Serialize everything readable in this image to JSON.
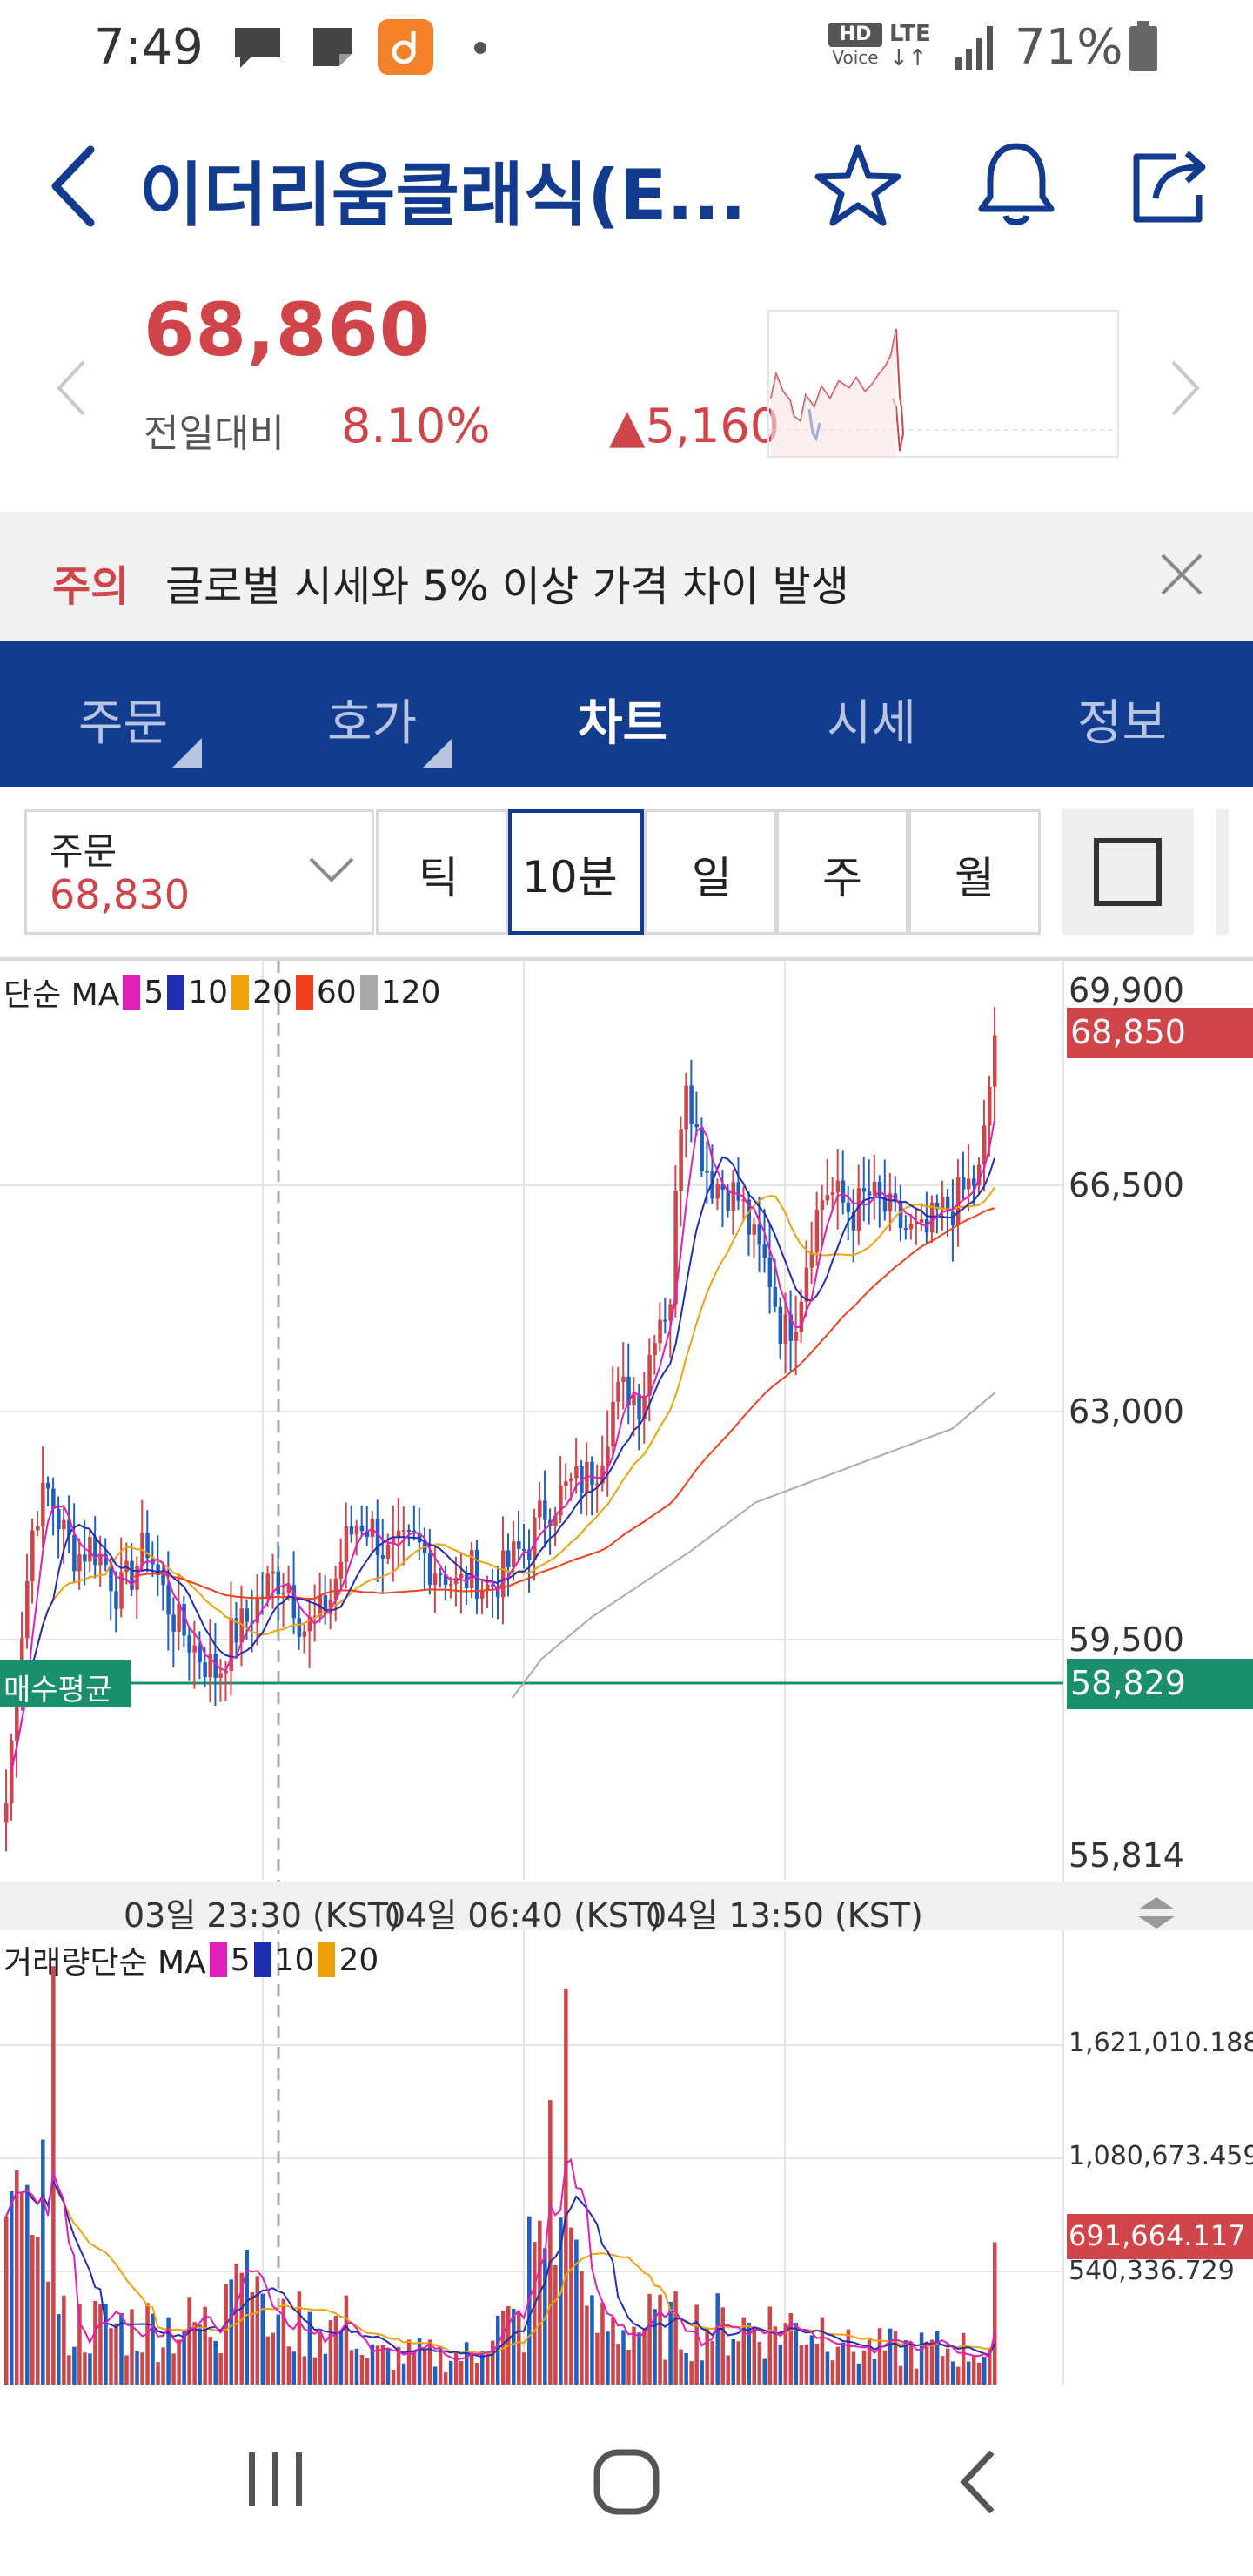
{
  "status_bar": {
    "time": "7:49",
    "icons": [
      "message-icon",
      "note-icon",
      "app-notification-icon",
      "dot-icon",
      "hd-voice-icon",
      "lte-icon",
      "signal-icon",
      "battery-icon"
    ],
    "hd_label": "HD",
    "voice_label": "Voice",
    "lte_label": "LTE",
    "battery": "71%"
  },
  "header": {
    "title": "이더리움클래식(E...",
    "icons": [
      "back-icon",
      "star-icon",
      "bell-icon",
      "share-icon"
    ]
  },
  "price": {
    "current": "68,860",
    "change_label": "전일대비",
    "change_pct": "8.10%",
    "change_value": "▲5,160",
    "colors": {
      "up": "#d0454a",
      "down": "#1f5fbf"
    }
  },
  "alert": {
    "tag": "주의",
    "message": "글로벌 시세와 5% 이상 가격 차이 발생"
  },
  "tabs": [
    {
      "label": "주문"
    },
    {
      "label": "호가"
    },
    {
      "label": "차트"
    },
    {
      "label": "시세"
    },
    {
      "label": "정보"
    }
  ],
  "controls": {
    "order_label": "주문",
    "order_value": "68,830",
    "intervals": [
      "틱",
      "10분",
      "일",
      "주",
      "월"
    ],
    "selected_interval": "10분"
  },
  "chart_data": [
    {
      "type": "candlestick",
      "legend_prefix": "단순 MA",
      "legend": [
        {
          "name": "5",
          "color": "#e11fb9"
        },
        {
          "name": "10",
          "color": "#1f2fb0"
        },
        {
          "name": "20",
          "color": "#f0a20a"
        },
        {
          "name": "60",
          "color": "#f0401e"
        },
        {
          "name": "120",
          "color": "#aaaaaa"
        }
      ],
      "y_ticks": [
        "69,900",
        "66,500",
        "63,000",
        "59,500",
        "55,814"
      ],
      "ylim": [
        55814,
        70000
      ],
      "last_price_label": "68,850",
      "avg_buy_label": "매수평균",
      "avg_buy_value": "58,829",
      "x_labels": [
        "03일 23:30 (KST)",
        "04일 06:40 (KST)",
        "04일 13:50 (KST)"
      ],
      "close_path": [
        57000,
        59500,
        61500,
        61800,
        61200,
        60800,
        61000,
        60700,
        60200,
        60600,
        61000,
        60300,
        59800,
        59500,
        59200,
        59000,
        59600,
        59800,
        60200,
        60500,
        60400,
        59700,
        59800,
        60200,
        61000,
        61400,
        61200,
        60800,
        60900,
        61000,
        60700,
        60600,
        60300,
        60600,
        60300,
        60500,
        60800,
        61000,
        61500,
        61700,
        61900,
        62000,
        62300,
        63200,
        63400,
        63200,
        64500,
        64700,
        68500,
        67200,
        66600,
        66500,
        66300,
        65600,
        65200,
        64200,
        64600,
        65800,
        66500,
        66300,
        66100,
        66400,
        66200,
        66000,
        65800,
        65700,
        66100,
        66200,
        66500,
        66700,
        68850
      ],
      "ma120_path": [
        [
          312,
          1034
        ],
        [
          330,
          1010
        ],
        [
          360,
          985
        ],
        [
          420,
          945
        ],
        [
          460,
          915
        ],
        [
          500,
          900
        ],
        [
          540,
          885
        ],
        [
          580,
          870
        ],
        [
          606,
          848
        ]
      ]
    },
    {
      "type": "bar",
      "legend_prefix": "거래량단순 MA",
      "legend": [
        {
          "name": "5",
          "color": "#e11fb9"
        },
        {
          "name": "10",
          "color": "#1f2fb0"
        },
        {
          "name": "20",
          "color": "#f0a20a"
        }
      ],
      "y_ticks": [
        "1,621,010.188",
        "1,080,673.459",
        "540,336.729"
      ],
      "last_value_label": "691,664.117"
    }
  ],
  "navbar": {
    "icons": [
      "recent-apps-icon",
      "home-icon",
      "back-nav-icon"
    ]
  }
}
